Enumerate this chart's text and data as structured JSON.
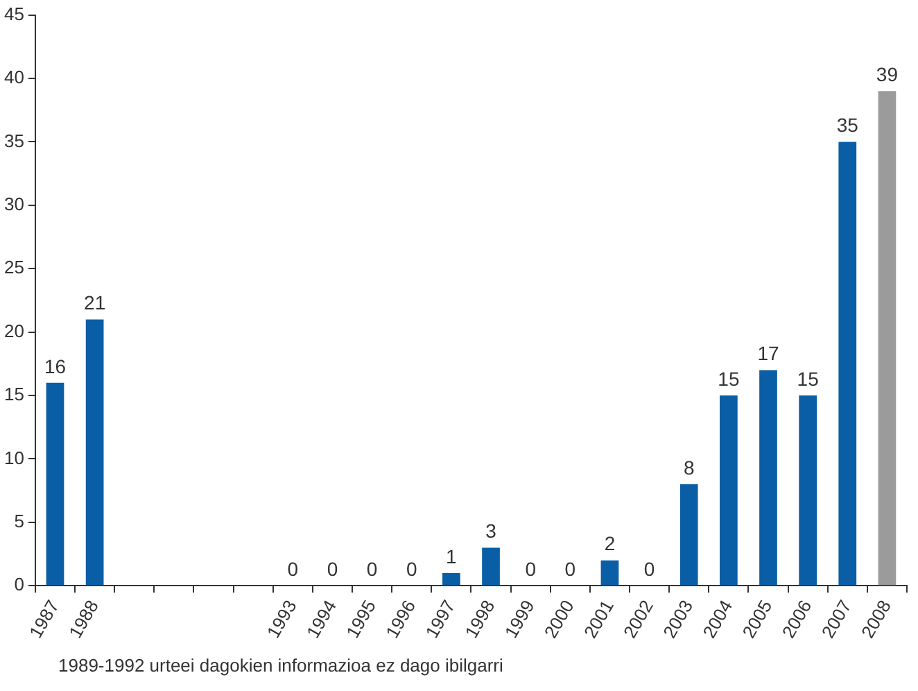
{
  "chart_data": {
    "type": "bar",
    "categories": [
      "1987",
      "1988",
      null,
      null,
      null,
      null,
      "1993",
      "1994",
      "1995",
      "1996",
      "1997",
      "1998",
      "1999",
      "2000",
      "2001",
      "2002",
      "2003",
      "2004",
      "2005",
      "2006",
      "2007",
      "2008"
    ],
    "values": [
      16,
      21,
      null,
      null,
      null,
      null,
      0,
      0,
      0,
      0,
      1,
      3,
      0,
      0,
      2,
      0,
      8,
      15,
      17,
      15,
      35,
      39
    ],
    "colors": [
      "#0a5ea5",
      "#0a5ea5",
      null,
      null,
      null,
      null,
      "#0a5ea5",
      "#0a5ea5",
      "#0a5ea5",
      "#0a5ea5",
      "#0a5ea5",
      "#0a5ea5",
      "#0a5ea5",
      "#0a5ea5",
      "#0a5ea5",
      "#0a5ea5",
      "#0a5ea5",
      "#0a5ea5",
      "#0a5ea5",
      "#0a5ea5",
      "#0a5ea5",
      "#9b9b9b"
    ],
    "ylim": [
      0,
      45
    ],
    "yticks": [
      0,
      5,
      10,
      15,
      20,
      25,
      30,
      35,
      40,
      45
    ],
    "grid": false,
    "legend": false,
    "data_labels": true,
    "annotations": [
      "1989-1992 urteei dagokien informazioa ez dago ibilgarri"
    ]
  }
}
